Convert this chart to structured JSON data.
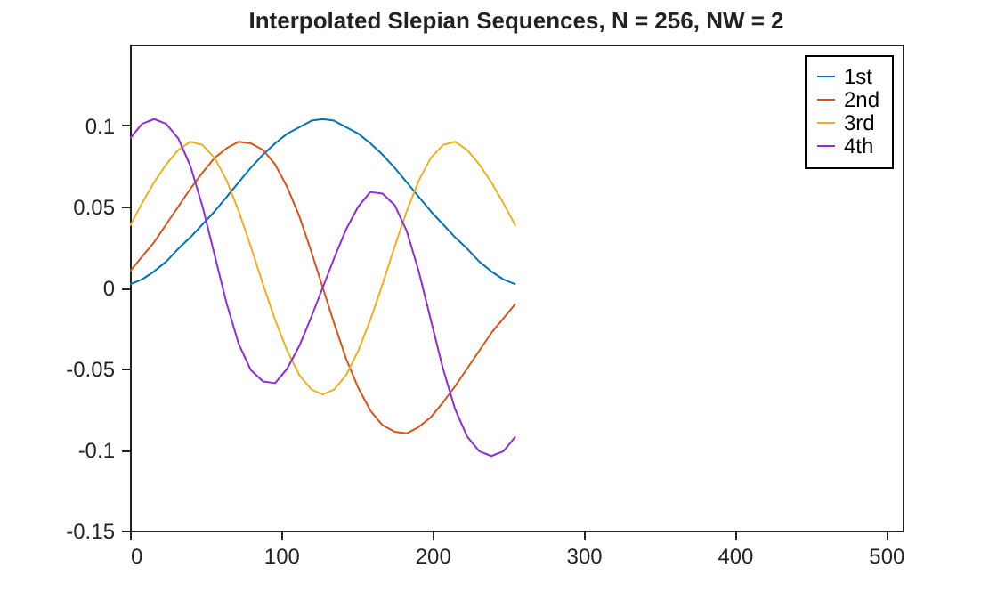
{
  "chart_data": {
    "type": "line",
    "title": "Interpolated Slepian Sequences, N = 256, NW = 2",
    "x": [
      0,
      8,
      16,
      24,
      32,
      40,
      48,
      56,
      64,
      72,
      80,
      88,
      96,
      104,
      112,
      120,
      127.5,
      135,
      143,
      151,
      159,
      167,
      175,
      183,
      191,
      199,
      207,
      215,
      223,
      231,
      239,
      247,
      255
    ],
    "series": [
      {
        "name": "1st",
        "color": "#0072bd",
        "values": [
          0.002,
          0.005,
          0.01,
          0.016,
          0.024,
          0.031,
          0.039,
          0.047,
          0.056,
          0.065,
          0.074,
          0.082,
          0.089,
          0.095,
          0.099,
          0.103,
          0.104,
          0.103,
          0.099,
          0.095,
          0.089,
          0.082,
          0.074,
          0.065,
          0.056,
          0.047,
          0.039,
          0.031,
          0.024,
          0.016,
          0.01,
          0.005,
          0.002
        ]
      },
      {
        "name": "2nd",
        "color": "#d95319",
        "values": [
          0.01,
          0.019,
          0.028,
          0.039,
          0.05,
          0.061,
          0.071,
          0.08,
          0.086,
          0.09,
          0.089,
          0.085,
          0.076,
          0.062,
          0.044,
          0.022,
          0,
          -0.022,
          -0.044,
          -0.062,
          -0.076,
          -0.085,
          -0.089,
          -0.09,
          -0.086,
          -0.08,
          -0.071,
          -0.061,
          -0.05,
          -0.039,
          -0.028,
          -0.019,
          -0.01
        ]
      },
      {
        "name": "3rd",
        "color": "#edb120",
        "values": [
          0.038,
          0.052,
          0.065,
          0.076,
          0.085,
          0.09,
          0.088,
          0.08,
          0.066,
          0.047,
          0.025,
          0.002,
          -0.02,
          -0.039,
          -0.054,
          -0.063,
          -0.066,
          -0.063,
          -0.054,
          -0.039,
          -0.02,
          0.002,
          0.025,
          0.047,
          0.066,
          0.08,
          0.088,
          0.09,
          0.085,
          0.076,
          0.065,
          0.052,
          0.038
        ]
      },
      {
        "name": "4th",
        "color": "#8b2be2",
        "values": [
          0.092,
          0.101,
          0.104,
          0.101,
          0.092,
          0.075,
          0.05,
          0.02,
          -0.01,
          -0.035,
          -0.051,
          -0.058,
          -0.059,
          -0.05,
          -0.036,
          -0.018,
          0,
          0.018,
          0.036,
          0.05,
          0.059,
          0.058,
          0.051,
          0.035,
          0.01,
          -0.02,
          -0.05,
          -0.075,
          -0.092,
          -0.101,
          -0.104,
          -0.101,
          -0.092
        ]
      }
    ],
    "xlim": [
      0,
      511
    ],
    "xticks": [
      0,
      100,
      200,
      300,
      400,
      500
    ],
    "ylim": [
      -0.15,
      0.15
    ],
    "yticks": [
      -0.15,
      -0.1,
      -0.05,
      0,
      0.05,
      0.1
    ],
    "legend": "top right",
    "grid": false
  }
}
